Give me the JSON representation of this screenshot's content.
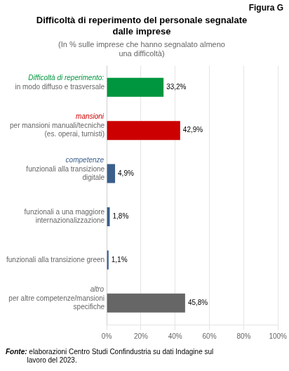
{
  "chart_data": {
    "type": "bar",
    "orientation": "horizontal",
    "title": "Difficoltà di reperimento del personale segnalate\ndalle imprese",
    "subtitle": "(In % sulle imprese che hanno segnalato almeno\nuna difficoltà)",
    "categories": [
      "in modo diffuso e trasversale",
      "per mansioni manuali/tecniche\n(es. operai, turnisti)",
      "funzionali alla transizione\ndigitale",
      "funzionali a una maggiore\ninternazionalizzazione",
      "funzionali alla transizione green",
      "per altre competenze/mansioni\nspecifiche"
    ],
    "values": [
      33.2,
      42.9,
      4.9,
      1.8,
      1.1,
      45.8
    ],
    "value_labels": [
      "33,2%",
      "42,9%",
      "4,9%",
      "1,8%",
      "1,1%",
      "45,8%"
    ],
    "colors": [
      "#00963f",
      "#cc0000",
      "#3a5f8a",
      "#3a5f8a",
      "#3a5f8a",
      "#666666"
    ],
    "data_labels": true,
    "xlim": [
      0,
      100
    ],
    "xticks": [
      {
        "value": 0,
        "label": "0%"
      },
      {
        "value": 20,
        "label": "20%"
      },
      {
        "value": 40,
        "label": "40%"
      },
      {
        "value": 60,
        "label": "60%"
      },
      {
        "value": 80,
        "label": "80%"
      },
      {
        "value": 100,
        "label": "100%"
      }
    ],
    "grid": true,
    "annotations": [
      {
        "text": "Figura G"
      },
      {
        "text": "Difficoltà di reperimento:",
        "color": "#00963f",
        "category": "in modo diffuso e trasversale"
      },
      {
        "text": "mansioni",
        "color": "#cc0000",
        "category": "per mansioni manuali/tecniche\n(es. operai, turnisti)"
      },
      {
        "text": "competenze",
        "color": "#3a5f8a",
        "category": "funzionali alla transizione\ndigitale"
      },
      {
        "text": "altro",
        "color": "#666666",
        "category": "per altre competenze/mansioni\nspecifiche"
      },
      {
        "text": "Fonte:"
      },
      {
        "text": " elaborazioni Centro Studi Confindustria su dati Indagine sul\nlavoro del 2023."
      }
    ]
  }
}
